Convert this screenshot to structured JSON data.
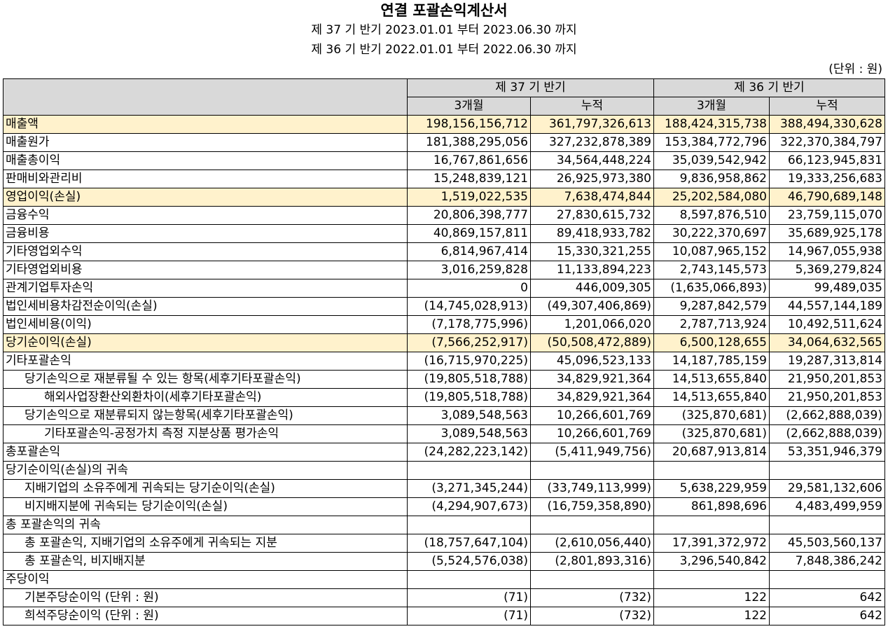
{
  "title": "연결 포괄손익계산서",
  "period_current": "제 37 기 반기 2023.01.01 부터 2023.06.30 까지",
  "period_prior": "제 36 기 반기 2022.01.01 부터 2022.06.30 까지",
  "unit": "(단위 : 원)",
  "header": {
    "col_current": "제 37 기 반기",
    "col_prior": "제 36 기 반기",
    "sub_3m_a": "3개월",
    "sub_cum_a": "누적",
    "sub_3m_b": "3개월",
    "sub_cum_b": "누적"
  },
  "highlight_color": "#fff2cc",
  "rows": [
    {
      "label": "매출액",
      "indent": 0,
      "highlight": true,
      "values": [
        "198,156,156,712",
        "361,797,326,613",
        "188,424,315,738",
        "388,494,330,628"
      ]
    },
    {
      "label": "매출원가",
      "indent": 0,
      "highlight": false,
      "values": [
        "181,388,295,056",
        "327,232,878,389",
        "153,384,772,796",
        "322,370,384,797"
      ]
    },
    {
      "label": "매출총이익",
      "indent": 0,
      "highlight": false,
      "values": [
        "16,767,861,656",
        "34,564,448,224",
        "35,039,542,942",
        "66,123,945,831"
      ]
    },
    {
      "label": "판매비와관리비",
      "indent": 0,
      "highlight": false,
      "values": [
        "15,248,839,121",
        "26,925,973,380",
        "9,836,958,862",
        "19,333,256,683"
      ]
    },
    {
      "label": "영업이익(손실)",
      "indent": 0,
      "highlight": true,
      "values": [
        "1,519,022,535",
        "7,638,474,844",
        "25,202,584,080",
        "46,790,689,148"
      ]
    },
    {
      "label": "금융수익",
      "indent": 0,
      "highlight": false,
      "values": [
        "20,806,398,777",
        "27,830,615,732",
        "8,597,876,510",
        "23,759,115,070"
      ]
    },
    {
      "label": "금융비용",
      "indent": 0,
      "highlight": false,
      "values": [
        "40,869,157,811",
        "89,418,933,782",
        "30,222,370,697",
        "35,689,925,178"
      ]
    },
    {
      "label": "기타영업외수익",
      "indent": 0,
      "highlight": false,
      "values": [
        "6,814,967,414",
        "15,330,321,255",
        "10,087,965,152",
        "14,967,055,938"
      ]
    },
    {
      "label": "기타영업외비용",
      "indent": 0,
      "highlight": false,
      "values": [
        "3,016,259,828",
        "11,133,894,223",
        "2,743,145,573",
        "5,369,279,824"
      ]
    },
    {
      "label": "관계기업투자손익",
      "indent": 0,
      "highlight": false,
      "values": [
        "0",
        "446,009,305",
        "(1,635,066,893)",
        "99,489,035"
      ]
    },
    {
      "label": "법인세비용차감전순이익(손실)",
      "indent": 0,
      "highlight": false,
      "values": [
        "(14,745,028,913)",
        "(49,307,406,869)",
        "9,287,842,579",
        "44,557,144,189"
      ]
    },
    {
      "label": "법인세비용(이익)",
      "indent": 0,
      "highlight": false,
      "values": [
        "(7,178,775,996)",
        "1,201,066,020",
        "2,787,713,924",
        "10,492,511,624"
      ]
    },
    {
      "label": "당기순이익(손실)",
      "indent": 0,
      "highlight": true,
      "values": [
        "(7,566,252,917)",
        "(50,508,472,889)",
        "6,500,128,655",
        "34,064,632,565"
      ]
    },
    {
      "label": "기타포괄손익",
      "indent": 0,
      "highlight": false,
      "values": [
        "(16,715,970,225)",
        "45,096,523,133",
        "14,187,785,159",
        "19,287,313,814"
      ]
    },
    {
      "label": "당기손익으로 재분류될 수 있는 항목(세후기타포괄손익)",
      "indent": 1,
      "highlight": false,
      "values": [
        "(19,805,518,788)",
        "34,829,921,364",
        "14,513,655,840",
        "21,950,201,853"
      ]
    },
    {
      "label": "해외사업장환산외환차이(세후기타포괄손익)",
      "indent": 2,
      "highlight": false,
      "values": [
        "(19,805,518,788)",
        "34,829,921,364",
        "14,513,655,840",
        "21,950,201,853"
      ]
    },
    {
      "label": "당기손익으로 재분류되지 않는항목(세후기타포괄손익)",
      "indent": 1,
      "highlight": false,
      "values": [
        "3,089,548,563",
        "10,266,601,769",
        "(325,870,681)",
        "(2,662,888,039)"
      ]
    },
    {
      "label": "기타포괄손익-공정가치 측정 지분상품 평가손익",
      "indent": 2,
      "highlight": false,
      "values": [
        "3,089,548,563",
        "10,266,601,769",
        "(325,870,681)",
        "(2,662,888,039)"
      ]
    },
    {
      "label": "총포괄손익",
      "indent": 0,
      "highlight": false,
      "values": [
        "(24,282,223,142)",
        "(5,411,949,756)",
        "20,687,913,814",
        "53,351,946,379"
      ]
    },
    {
      "label": "당기순이익(손실)의 귀속",
      "indent": 0,
      "highlight": false,
      "values": [
        "",
        "",
        "",
        ""
      ]
    },
    {
      "label": "지배기업의 소유주에게 귀속되는 당기순이익(손실)",
      "indent": 1,
      "highlight": false,
      "values": [
        "(3,271,345,244)",
        "(33,749,113,999)",
        "5,638,229,959",
        "29,581,132,606"
      ]
    },
    {
      "label": "비지배지분에 귀속되는 당기순이익(손실)",
      "indent": 1,
      "highlight": false,
      "values": [
        "(4,294,907,673)",
        "(16,759,358,890)",
        "861,898,696",
        "4,483,499,959"
      ]
    },
    {
      "label": "총 포괄손익의 귀속",
      "indent": 0,
      "highlight": false,
      "values": [
        "",
        "",
        "",
        ""
      ]
    },
    {
      "label": "총 포괄손익, 지배기업의 소유주에게 귀속되는 지분",
      "indent": 1,
      "highlight": false,
      "values": [
        "(18,757,647,104)",
        "(2,610,056,440)",
        "17,391,372,972",
        "45,503,560,137"
      ]
    },
    {
      "label": "총 포괄손익, 비지배지분",
      "indent": 1,
      "highlight": false,
      "values": [
        "(5,524,576,038)",
        "(2,801,893,316)",
        "3,296,540,842",
        "7,848,386,242"
      ]
    },
    {
      "label": "주당이익",
      "indent": 0,
      "highlight": false,
      "values": [
        "",
        "",
        "",
        ""
      ]
    },
    {
      "label": "기본주당순이익 (단위 : 원)",
      "indent": 1,
      "highlight": false,
      "values": [
        "(71)",
        "(732)",
        "122",
        "642"
      ]
    },
    {
      "label": "희석주당순이익 (단위 : 원)",
      "indent": 1,
      "highlight": false,
      "values": [
        "(71)",
        "(732)",
        "122",
        "642"
      ]
    }
  ]
}
